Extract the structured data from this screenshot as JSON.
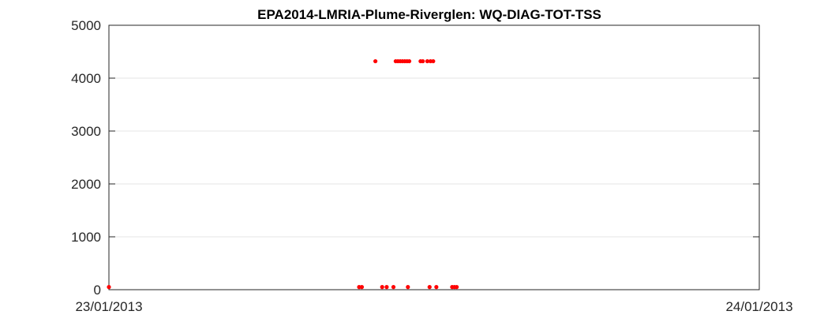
{
  "chart_data": {
    "type": "scatter",
    "title": "EPA2014-LMRIA-Plume-Riverglen: WQ-DIAG-TOT-TSS",
    "xlabel": "",
    "ylabel": "",
    "xlim": [
      "23/01/2013 00:00",
      "24/01/2013 00:00"
    ],
    "ylim": [
      0,
      5000
    ],
    "x_tick_labels": [
      "23/01/2013",
      "24/01/2013"
    ],
    "y_ticks": [
      0,
      1000,
      2000,
      3000,
      4000,
      5000
    ],
    "grid": "y-major",
    "legend": "none",
    "marker_color": "#ff0000",
    "points": [
      {
        "x": "23/01/2013 00:00",
        "y": 50
      },
      {
        "x": "23/01/2013 09:14",
        "y": 50
      },
      {
        "x": "23/01/2013 09:20",
        "y": 50
      },
      {
        "x": "23/01/2013 09:50",
        "y": 4320
      },
      {
        "x": "23/01/2013 10:05",
        "y": 50
      },
      {
        "x": "23/01/2013 10:15",
        "y": 50
      },
      {
        "x": "23/01/2013 10:30",
        "y": 50
      },
      {
        "x": "23/01/2013 10:35",
        "y": 4320
      },
      {
        "x": "23/01/2013 10:40",
        "y": 4320
      },
      {
        "x": "23/01/2013 10:45",
        "y": 4320
      },
      {
        "x": "23/01/2013 10:50",
        "y": 4320
      },
      {
        "x": "23/01/2013 10:55",
        "y": 4320
      },
      {
        "x": "23/01/2013 11:00",
        "y": 4320
      },
      {
        "x": "23/01/2013 11:02",
        "y": 50
      },
      {
        "x": "23/01/2013 11:05",
        "y": 4320
      },
      {
        "x": "23/01/2013 11:30",
        "y": 4320
      },
      {
        "x": "23/01/2013 11:35",
        "y": 4320
      },
      {
        "x": "23/01/2013 11:45",
        "y": 4320
      },
      {
        "x": "23/01/2013 11:50",
        "y": 50
      },
      {
        "x": "23/01/2013 11:52",
        "y": 4320
      },
      {
        "x": "23/01/2013 11:58",
        "y": 4320
      },
      {
        "x": "23/01/2013 12:05",
        "y": 50
      },
      {
        "x": "23/01/2013 12:40",
        "y": 50
      },
      {
        "x": "23/01/2013 12:45",
        "y": 50
      },
      {
        "x": "23/01/2013 12:50",
        "y": 50
      }
    ]
  }
}
